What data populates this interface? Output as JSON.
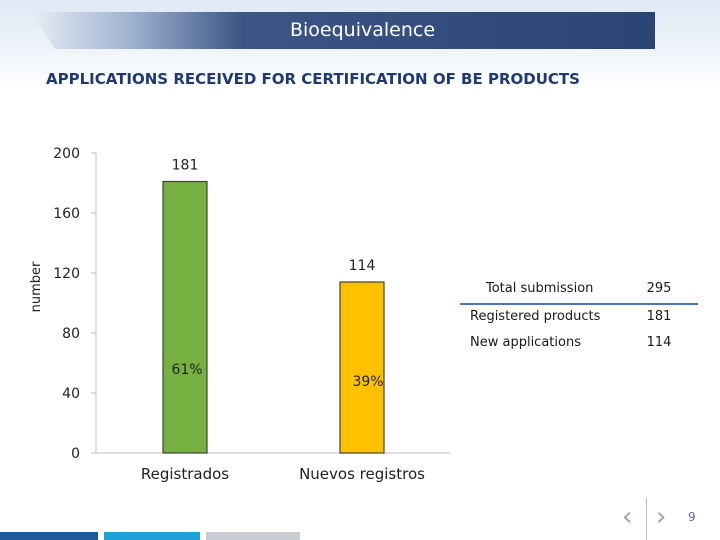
{
  "header": {
    "title": "Bioequivalence"
  },
  "subtitle": "APPLICATIONS RECEIVED FOR CERTIFICATION OF BE PRODUCTS",
  "chart_data": {
    "type": "bar",
    "categories": [
      "Registrados",
      "Nuevos registros"
    ],
    "values": [
      181,
      114
    ],
    "value_labels": [
      "181",
      "114"
    ],
    "percent_labels": [
      "61%",
      "39%"
    ],
    "bar_colors": [
      "#76b041",
      "#ffc000"
    ],
    "title": "",
    "xlabel": "",
    "ylabel": "number",
    "ylim": [
      0,
      200
    ],
    "yticks": [
      0,
      40,
      80,
      120,
      160,
      200
    ],
    "grid": false
  },
  "summary_table": {
    "header": {
      "label": "Total  submission",
      "value": "295"
    },
    "rows": [
      {
        "label": "Registered products",
        "value": "181"
      },
      {
        "label": "New applications",
        "value": "114"
      }
    ]
  },
  "navigation": {
    "prev_icon": "chevron-left-icon",
    "next_icon": "chevron-right-icon"
  },
  "page_number": "9",
  "colors": {
    "header_dark": "#2a4476",
    "subtitle": "#1e3a6e",
    "table_rule": "#4a73b8",
    "footer": [
      "#1f5b9a",
      "#1ea0d8",
      "#c8ccd2"
    ]
  }
}
